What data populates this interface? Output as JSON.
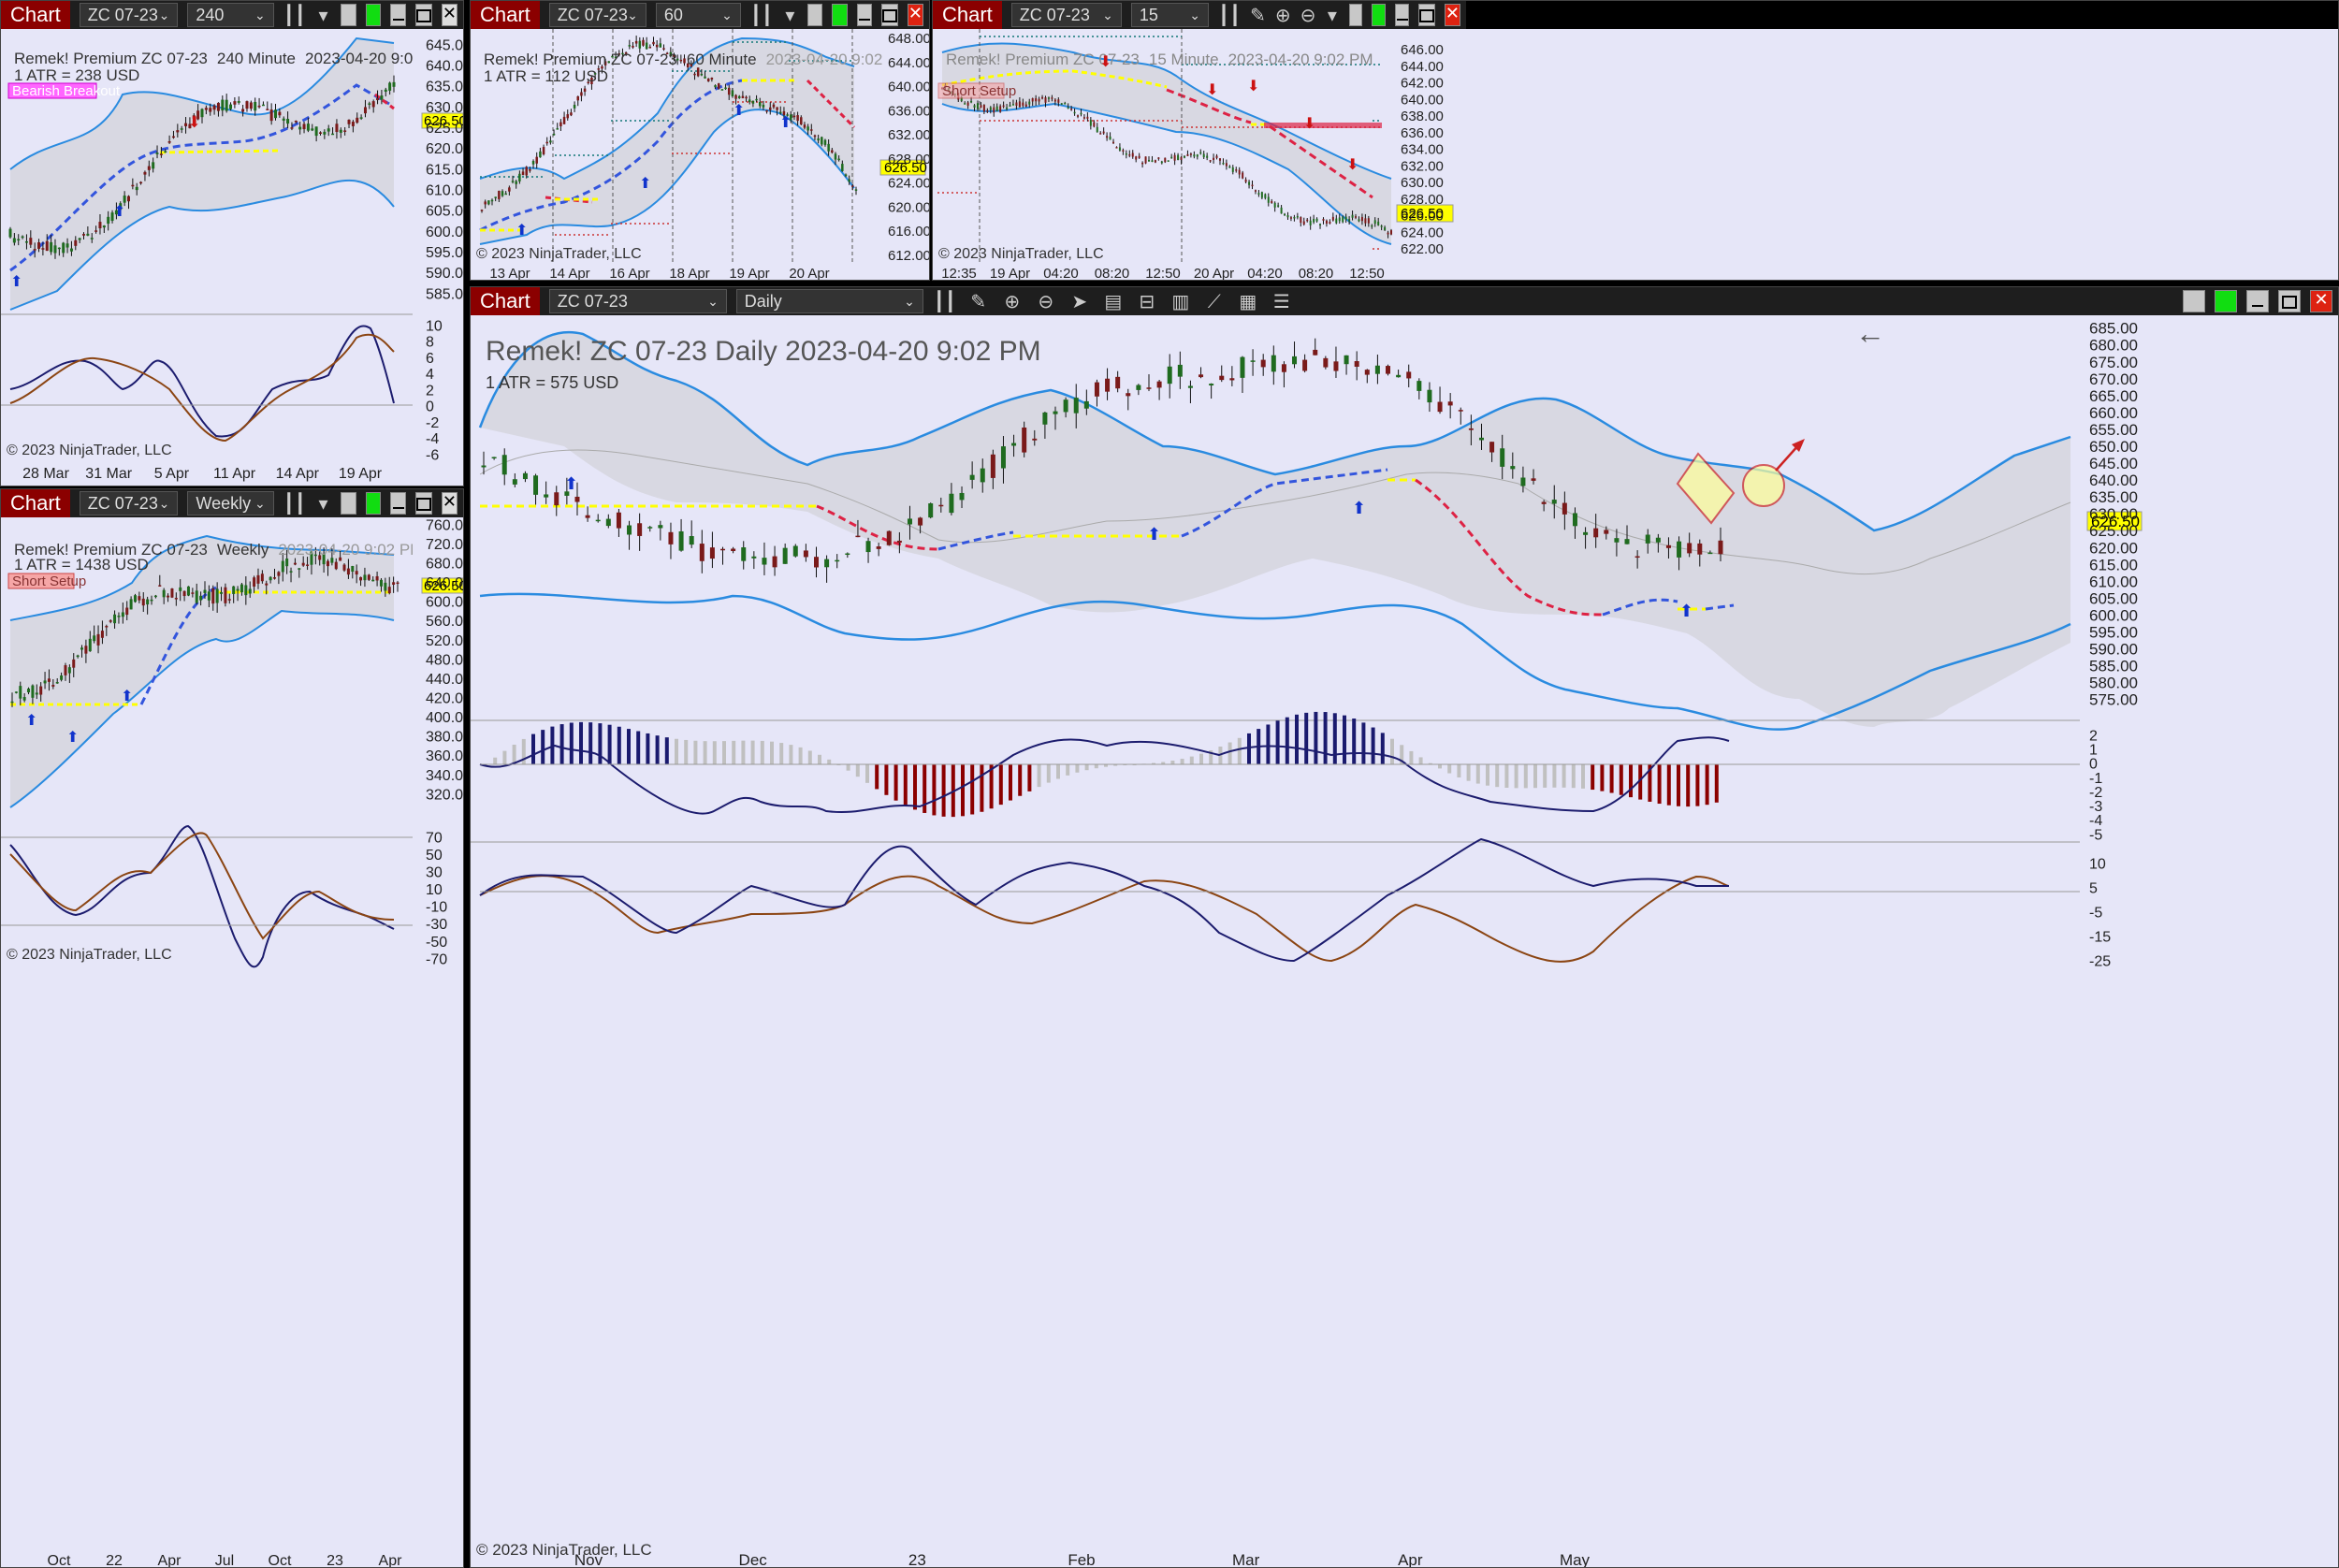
{
  "common": {
    "chart_label": "Chart",
    "instrument": "ZC 07-23",
    "copyright": "© 2023 NinjaTrader, LLC",
    "price_tag": "626.50",
    "prefix": "Remek!  Premium  ZC 07-23",
    "datetime": "2023-04-20 9:02 PM",
    "close_glyph": "✕"
  },
  "colors": {
    "bg": "#e6e6f8",
    "band": "#dcdce6",
    "bandline": "#3399ee",
    "up": "#1f6b1f",
    "down": "#7a1a1a",
    "signal_blue": "#3355dd",
    "signal_red": "#dd2244",
    "signal_yellow": "#ffff00",
    "chart_tab": "#8b0000",
    "price_tag_bg": "#ffff00"
  },
  "win240": {
    "timeframe": "240 Minute",
    "atr": "1 ATR = 238 USD",
    "badge": "Bearish Breakout",
    "price_ticks": [
      "645.00",
      "640.00",
      "635.00",
      "630.00",
      "625.00",
      "620.00",
      "615.00",
      "610.00",
      "605.00",
      "600.00",
      "595.00",
      "590.00",
      "585.00"
    ],
    "osc_ticks": [
      "10",
      "8",
      "6",
      "4",
      "2",
      "0",
      "-2",
      "-4",
      "-6"
    ],
    "date_ticks": [
      "28 Mar",
      "31 Mar",
      "5 Apr",
      "11 Apr",
      "14 Apr",
      "19 Apr"
    ]
  },
  "win60": {
    "timeframe": "60 Minute",
    "atr": "1 ATR = 112 USD",
    "price_ticks": [
      "648.00",
      "644.00",
      "640.00",
      "636.00",
      "632.00",
      "628.00",
      "624.00",
      "620.00",
      "616.00",
      "612.00"
    ],
    "date_ticks": [
      "13 Apr",
      "14 Apr",
      "16 Apr",
      "18 Apr",
      "19 Apr",
      "20 Apr"
    ]
  },
  "win15": {
    "timeframe": "15 Minute",
    "badge": "Short Setup",
    "price_ticks": [
      "646.00",
      "644.00",
      "642.00",
      "640.00",
      "638.00",
      "636.00",
      "634.00",
      "632.00",
      "630.00",
      "628.00",
      "626.00",
      "624.00",
      "622.00"
    ],
    "date_ticks": [
      "12:35",
      "19 Apr",
      "04:20",
      "08:20",
      "12:50",
      "20 Apr",
      "04:20",
      "08:20",
      "12:50"
    ]
  },
  "winW": {
    "timeframe": "Weekly",
    "atr": "1 ATR = 1438 USD",
    "badge": "Short Setup",
    "price_ticks": [
      "760.00",
      "720.00",
      "680.00",
      "640.00",
      "600.00",
      "560.00",
      "520.00",
      "480.00",
      "440.00",
      "420.00",
      "400.00",
      "380.00",
      "360.00",
      "340.00",
      "320.00"
    ],
    "osc_ticks": [
      "70",
      "50",
      "30",
      "10",
      "-10",
      "-30",
      "-50",
      "-70"
    ],
    "date_ticks": [
      "Oct",
      "22",
      "Apr",
      "Jul",
      "Oct",
      "23",
      "Apr"
    ]
  },
  "winD": {
    "timeframe": "Daily",
    "title": "Remek!  ZC 07-23  Daily  2023-04-20 9:02 PM",
    "atr": "1 ATR = 575 USD",
    "price_ticks": [
      "685.00",
      "680.00",
      "675.00",
      "670.00",
      "665.00",
      "660.00",
      "655.00",
      "650.00",
      "645.00",
      "640.00",
      "635.00",
      "630.00",
      "625.00",
      "620.00",
      "615.00",
      "610.00",
      "605.00",
      "600.00",
      "595.00",
      "590.00",
      "585.00",
      "580.00",
      "575.00"
    ],
    "osc1_ticks": [
      "2",
      "1",
      "0",
      "-1",
      "-2",
      "-3",
      "-4",
      "-5"
    ],
    "osc2_ticks": [
      "10",
      "5",
      "-5",
      "-15",
      "-25"
    ],
    "date_ticks": [
      "Nov",
      "Dec",
      "23",
      "Feb",
      "Mar",
      "Apr",
      "May"
    ],
    "back_arrow": "←"
  }
}
